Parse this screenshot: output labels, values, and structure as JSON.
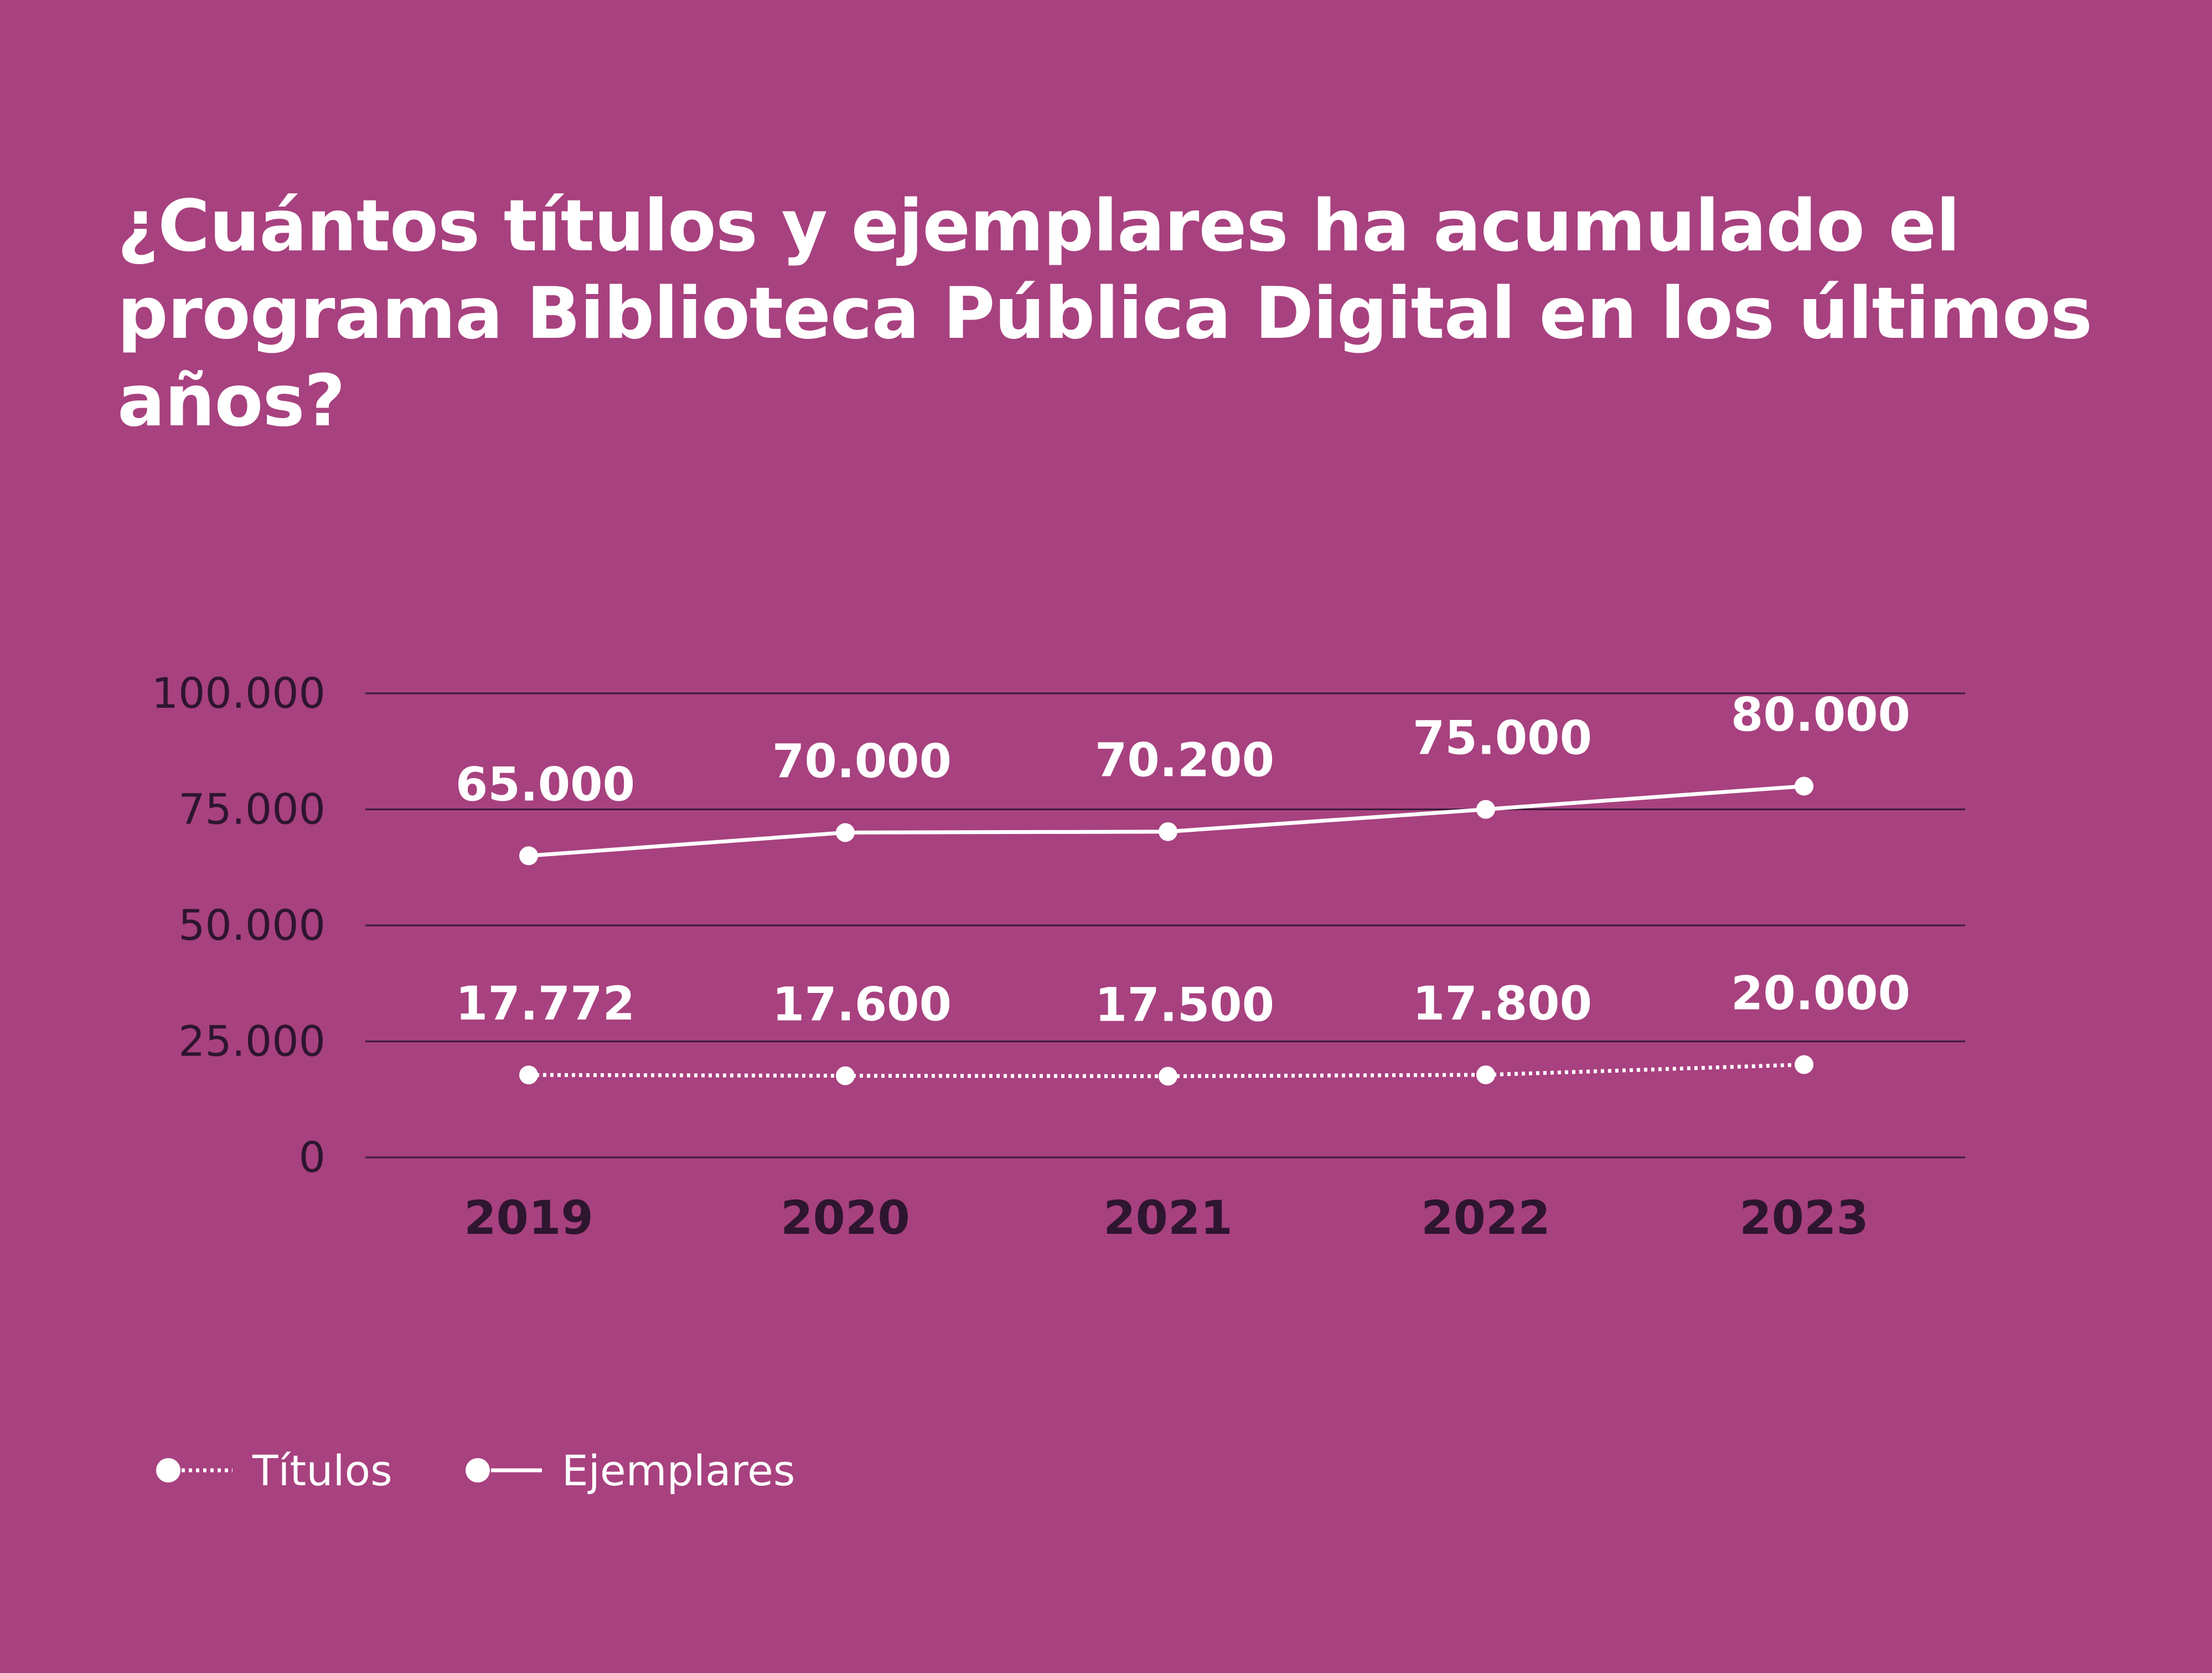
{
  "title": "¿Cuántos títulos y ejemplares ha acumulado el programa Biblioteca Pública Digital en los últimos años?",
  "colors": {
    "background": "#a8417f",
    "line": "#ffffff",
    "text_dark": "#2e1530",
    "grid": "#3a1a3a"
  },
  "chart_data": {
    "type": "line",
    "title": "¿Cuántos títulos y ejemplares ha acumulado el programa Biblioteca Pública Digital en los últimos años?",
    "xlabel": "",
    "ylabel": "",
    "categories": [
      "2019",
      "2020",
      "2021",
      "2022",
      "2023"
    ],
    "ylim": [
      0,
      100000
    ],
    "yticks": [
      0,
      25000,
      50000,
      75000,
      100000
    ],
    "ytick_labels": [
      "0",
      "25.000",
      "50.000",
      "75.000",
      "100.000"
    ],
    "grid": true,
    "legend_position": "bottom-left",
    "series": [
      {
        "name": "Títulos",
        "style": "dotted",
        "values": [
          17772,
          17600,
          17500,
          17800,
          20000
        ],
        "labels": [
          "17.772",
          "17.600",
          "17.500",
          "17.800",
          "20.000"
        ]
      },
      {
        "name": "Ejemplares",
        "style": "solid",
        "values": [
          65000,
          70000,
          70200,
          75000,
          80000
        ],
        "labels": [
          "65.000",
          "70.000",
          "70.200",
          "75.000",
          "80.000"
        ]
      }
    ]
  }
}
